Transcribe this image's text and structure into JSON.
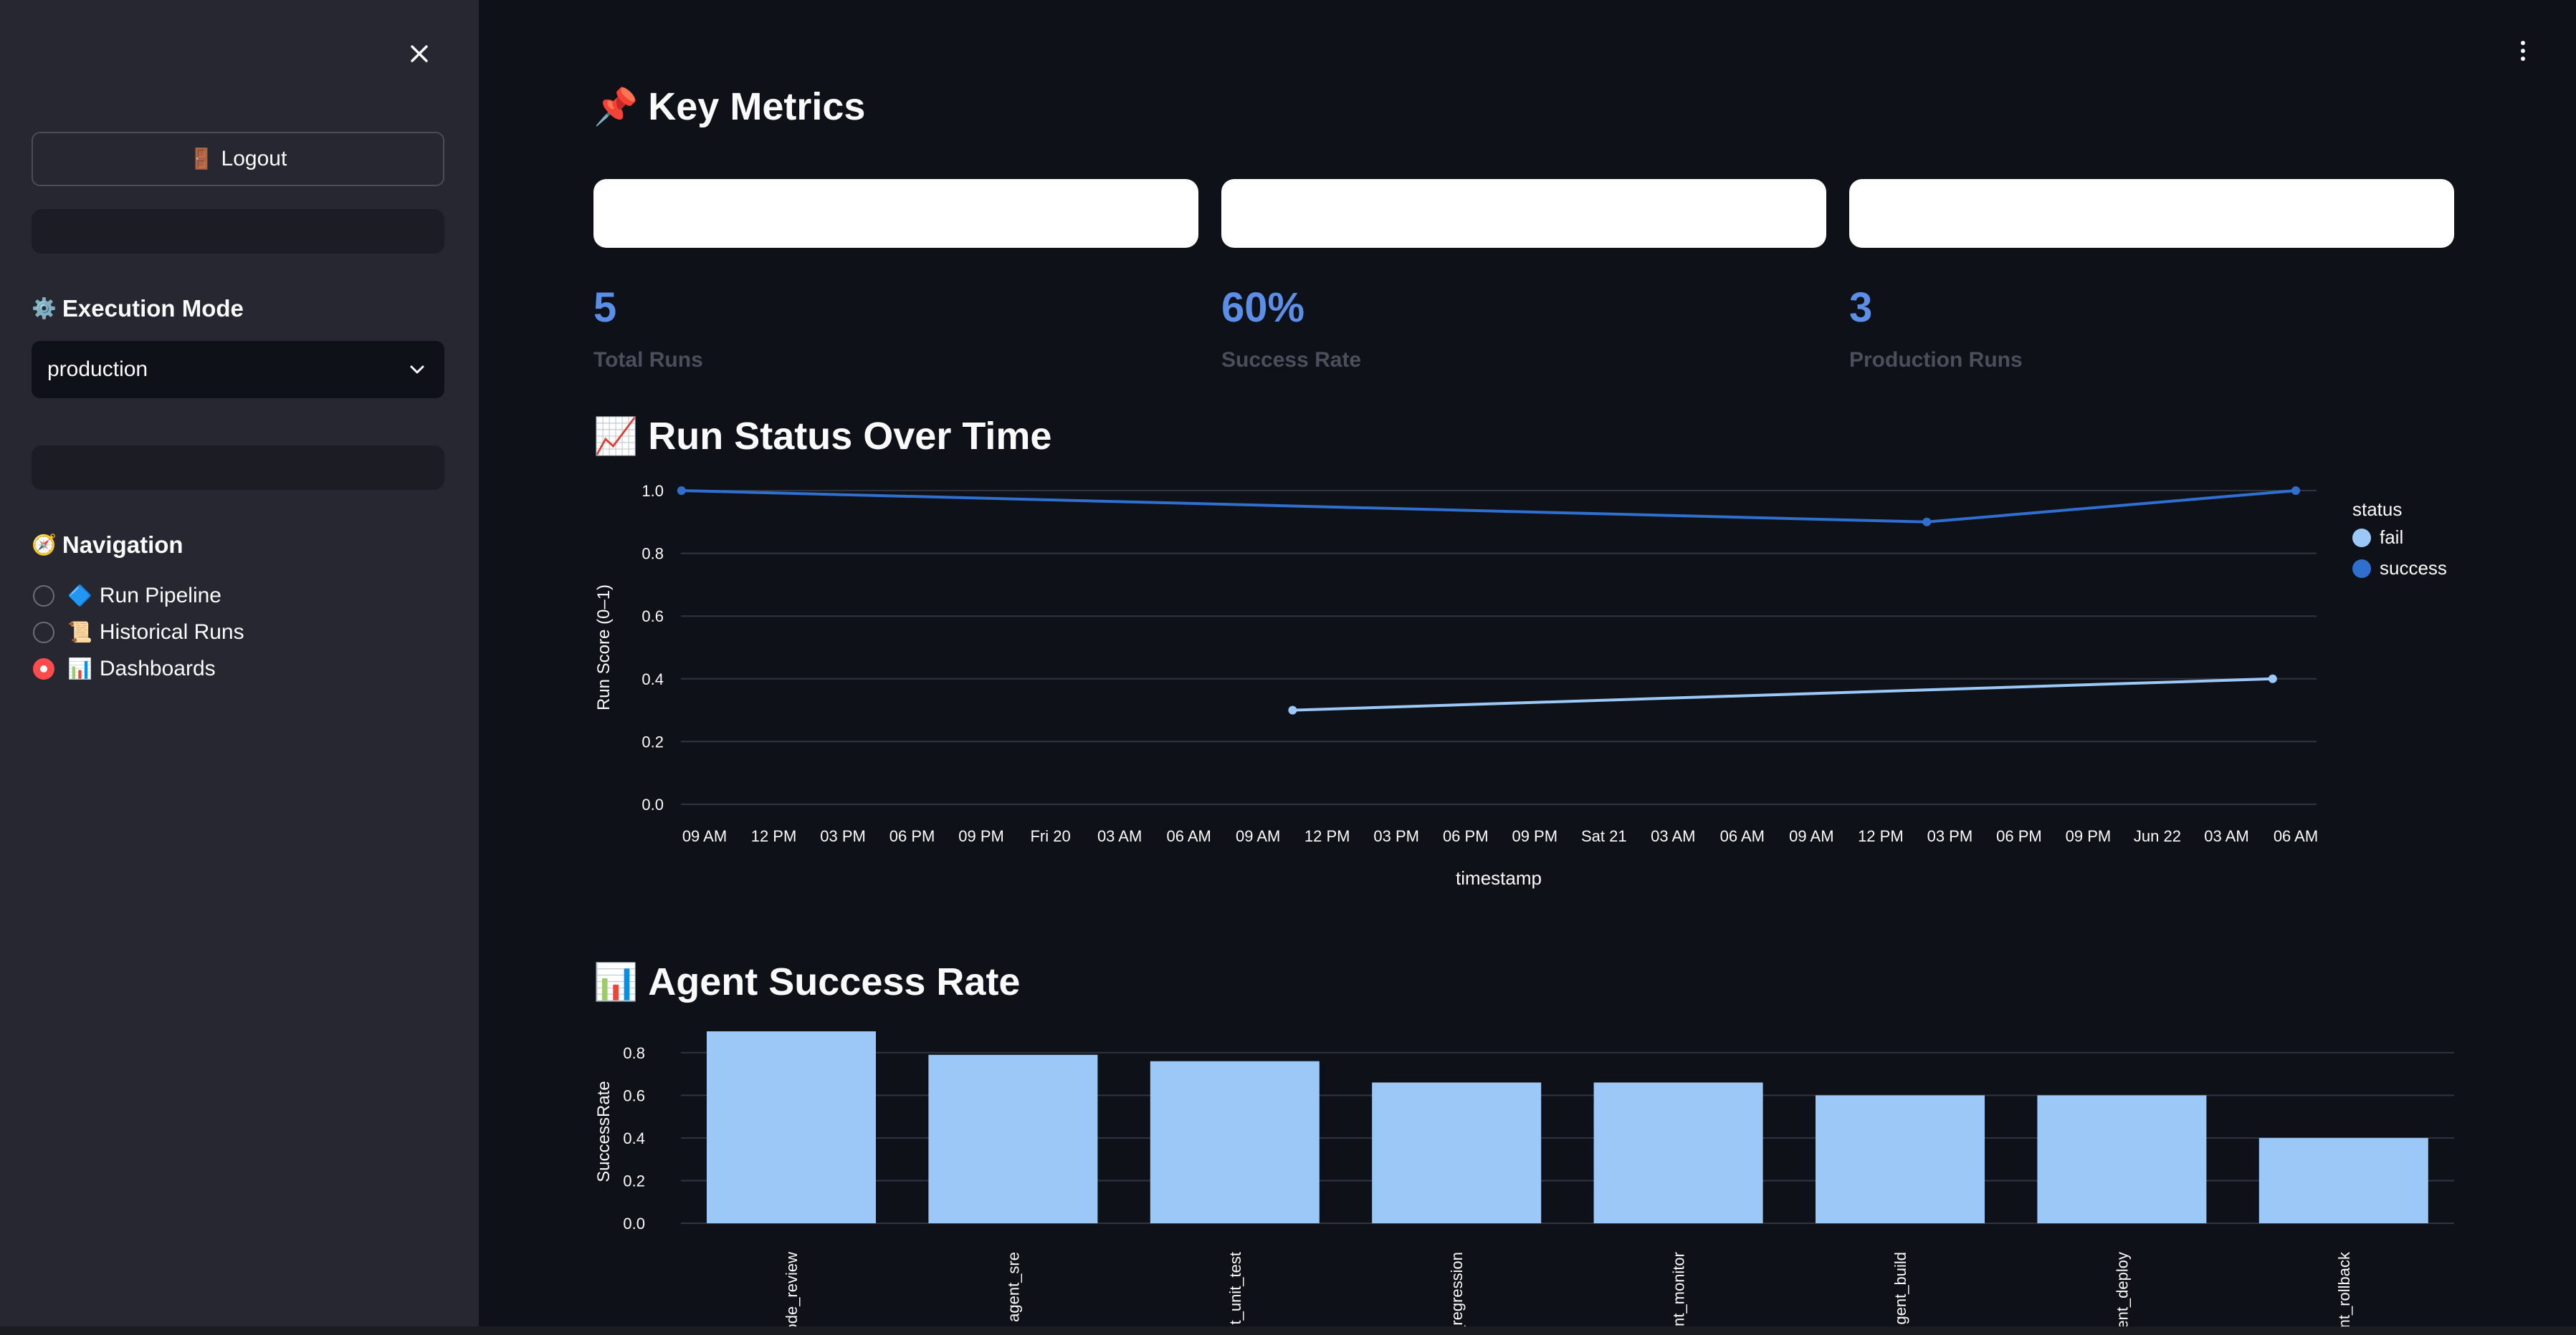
{
  "sidebar": {
    "logout_label": "Logout",
    "execution_mode": {
      "heading": "Execution Mode",
      "selected": "production"
    },
    "navigation": {
      "heading": "Navigation",
      "items": [
        {
          "label": "Run Pipeline",
          "icon": "diamond-icon",
          "selected": false
        },
        {
          "label": "Historical Runs",
          "icon": "scroll-icon",
          "selected": false
        },
        {
          "label": "Dashboards",
          "icon": "bar-chart-icon",
          "selected": true
        }
      ]
    }
  },
  "key_metrics": {
    "title": "Key Metrics",
    "metrics": [
      {
        "value": "5",
        "label": "Total Runs"
      },
      {
        "value": "60%",
        "label": "Success Rate"
      },
      {
        "value": "3",
        "label": "Production Runs"
      }
    ]
  },
  "run_status": {
    "title": "Run Status Over Time"
  },
  "agent_success": {
    "title": "Agent Success Rate"
  },
  "colors": {
    "fail": "#9cc8f8",
    "success": "#2f6fd0",
    "metric_value": "#5b8ee6",
    "bar": "#9cc8f8",
    "accent": "#ff4b4b"
  },
  "chart_data": [
    {
      "type": "line",
      "xlabel": "timestamp",
      "ylabel": "Run Score (0–1)",
      "ylim": [
        0,
        1
      ],
      "y_ticks": [
        "0.0",
        "0.2",
        "0.4",
        "0.6",
        "0.8",
        "1.0"
      ],
      "x_ticks": [
        "09 AM",
        "12 PM",
        "03 PM",
        "06 PM",
        "09 PM",
        "Fri 20",
        "03 AM",
        "06 AM",
        "09 AM",
        "12 PM",
        "03 PM",
        "06 PM",
        "09 PM",
        "Sat 21",
        "03 AM",
        "06 AM",
        "09 AM",
        "12 PM",
        "03 PM",
        "06 PM",
        "09 PM",
        "Jun 22",
        "03 AM",
        "06 AM"
      ],
      "x_range": [
        "Jun 19 09 AM",
        "Jun 22 06 AM"
      ],
      "legend": {
        "title": "status",
        "entries": [
          "fail",
          "success"
        ],
        "position": "right"
      },
      "grid": true,
      "series": [
        {
          "name": "fail",
          "points": [
            {
              "x": "Jun 20 10:30 AM",
              "y": 0.3
            },
            {
              "x": "Jun 22 05:00 AM",
              "y": 0.4
            }
          ]
        },
        {
          "name": "success",
          "points": [
            {
              "x": "Jun 19 08:00 AM",
              "y": 1.0
            },
            {
              "x": "Jun 21 02:00 PM",
              "y": 0.9
            },
            {
              "x": "Jun 22 06:00 AM",
              "y": 1.0
            }
          ]
        }
      ]
    },
    {
      "type": "bar",
      "ylabel": "SuccessRate",
      "ylim": [
        0,
        0.9
      ],
      "y_ticks": [
        "0.0",
        "0.2",
        "0.4",
        "0.6",
        "0.8"
      ],
      "grid": true,
      "categories": [
        "ode_review",
        "agent_sre",
        "t_unit_test",
        "_regression",
        "nt_monitor",
        "gent_build",
        "ent_deploy",
        "nt_rollback"
      ],
      "values": [
        0.9,
        0.79,
        0.76,
        0.66,
        0.66,
        0.6,
        0.6,
        0.4
      ]
    }
  ]
}
